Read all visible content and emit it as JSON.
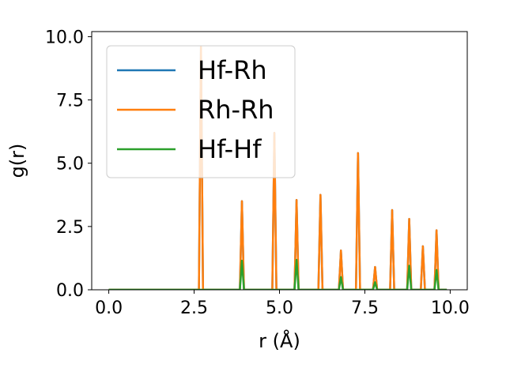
{
  "chart_data": {
    "type": "line",
    "xlabel": "r (Å)",
    "ylabel": "g(r)",
    "xlim": [
      -0.5,
      10.5
    ],
    "ylim": [
      0,
      10.2
    ],
    "xticks": [
      0.0,
      2.5,
      5.0,
      7.5,
      10.0
    ],
    "xtick_labels": [
      "0.0",
      "2.5",
      "5.0",
      "7.5",
      "10.0"
    ],
    "yticks": [
      0.0,
      2.5,
      5.0,
      7.5,
      10.0
    ],
    "ytick_labels": [
      "0.0",
      "2.5",
      "5.0",
      "7.5",
      "10.0"
    ],
    "legend_position": "upper-left",
    "grid": false,
    "x_range": [
      0.0,
      9.9
    ],
    "peak_half_width": 0.06,
    "series": [
      {
        "name": "Hf-Rh",
        "color": "#1f77b4",
        "peaks": [
          {
            "x": 2.7,
            "y": 9.6
          },
          {
            "x": 3.9,
            "y": 3.5
          },
          {
            "x": 4.85,
            "y": 6.2
          },
          {
            "x": 5.5,
            "y": 3.55
          },
          {
            "x": 6.2,
            "y": 3.75
          },
          {
            "x": 6.8,
            "y": 1.55
          },
          {
            "x": 7.3,
            "y": 5.4
          },
          {
            "x": 7.8,
            "y": 0.9
          },
          {
            "x": 8.3,
            "y": 3.15
          },
          {
            "x": 8.8,
            "y": 2.8
          },
          {
            "x": 9.2,
            "y": 1.72
          },
          {
            "x": 9.6,
            "y": 2.35
          }
        ]
      },
      {
        "name": "Rh-Rh",
        "color": "#ff7f0e",
        "peaks": [
          {
            "x": 2.7,
            "y": 9.6
          },
          {
            "x": 3.9,
            "y": 3.5
          },
          {
            "x": 4.85,
            "y": 6.2
          },
          {
            "x": 5.5,
            "y": 3.55
          },
          {
            "x": 6.2,
            "y": 3.75
          },
          {
            "x": 6.8,
            "y": 1.55
          },
          {
            "x": 7.3,
            "y": 5.4
          },
          {
            "x": 7.8,
            "y": 0.9
          },
          {
            "x": 8.3,
            "y": 3.15
          },
          {
            "x": 8.8,
            "y": 2.8
          },
          {
            "x": 9.2,
            "y": 1.72
          },
          {
            "x": 9.6,
            "y": 2.35
          }
        ]
      },
      {
        "name": "Hf-Hf",
        "color": "#2ca02c",
        "peaks": [
          {
            "x": 3.9,
            "y": 1.15
          },
          {
            "x": 5.5,
            "y": 1.18
          },
          {
            "x": 6.8,
            "y": 0.5
          },
          {
            "x": 7.8,
            "y": 0.3
          },
          {
            "x": 8.8,
            "y": 0.95
          },
          {
            "x": 9.6,
            "y": 0.78
          }
        ]
      }
    ]
  }
}
